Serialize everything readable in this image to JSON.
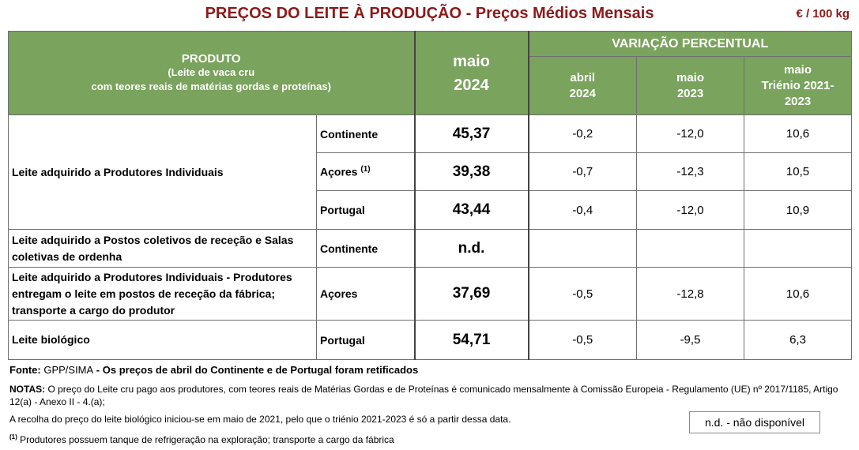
{
  "header": {
    "title": "PREÇOS DO LEITE À PRODUÇÃO - Preços Médios Mensais",
    "unit": "€ / 100 kg"
  },
  "table": {
    "col_produto_title": "PRODUTO",
    "col_produto_sub1": "(Leite de vaca cru",
    "col_produto_sub2": "com teores reais de matérias gordas e proteínas)",
    "col_price_l1": "maio",
    "col_price_l2": "2024",
    "col_var_title": "VARIAÇÃO PERCENTUAL",
    "col_var_abril_l1": "abril",
    "col_var_abril_l2": "2024",
    "col_var_maio_l1": "maio",
    "col_var_maio_l2": "2023",
    "col_var_trien_l1": "maio",
    "col_var_trien_l2": "Triénio 2021-",
    "col_var_trien_l3": "2023",
    "rows": [
      {
        "label": "Leite adquirido a Produtores Individuais",
        "region": "Continente",
        "price": "45,37",
        "abril": "-0,2",
        "maio": "-12,0",
        "trienio": "10,6"
      },
      {
        "region": "Açores",
        "region_sup": "(1)",
        "price": "39,38",
        "abril": "-0,7",
        "maio": "-12,3",
        "trienio": "10,5"
      },
      {
        "region": "Portugal",
        "price": "43,44",
        "abril": "-0,4",
        "maio": "-12,0",
        "trienio": "10,9"
      },
      {
        "label_l1": "Leite adquirido a Postos coletivos de receção e Salas",
        "label_l2": "coletivas de ordenha",
        "region": "Continente",
        "price": "n.d.",
        "abril": "",
        "maio": "",
        "trienio": ""
      },
      {
        "label_l1": "Leite adquirido a Produtores Individuais - Produtores",
        "label_l2": "entregam o leite em postos de receção da fábrica;",
        "label_l3": "transporte a cargo do produtor",
        "region": "Açores",
        "price": "37,69",
        "abril": "-0,5",
        "maio": "-12,8",
        "trienio": "10,6"
      },
      {
        "label": "Leite biológico",
        "region": "Portugal",
        "price": "54,71",
        "abril": "-0,5",
        "maio": "-9,5",
        "trienio": "6,3"
      }
    ]
  },
  "footer": {
    "fonte_label": "Fonte:",
    "fonte_src": " GPP/SIMA",
    "fonte_note": " - Os preços de abril do Continente e de Portugal foram retificados",
    "notas_label": "NOTAS:",
    "notas_text": " O preço do Leite cru pago aos produtores, com teores reais de Matérias Gordas e de Proteínas é comunicado mensalmente à Comissão Europeia - Regulamento (UE) nº 2017/1185, Artigo 12(a) - Anexo II - 4.(a);",
    "notas_text2": "A recolha do preço do leite biológico iniciou-se em maio de 2021, pelo que o triénio 2021-2023 é só a partir dessa data.",
    "nota1_sup": "(1)",
    "nota1_text": " Produtores possuem tanque de refrigeração na exploração; transporte a cargo da fábrica",
    "nd_legend": "n.d. - não disponível"
  },
  "colors": {
    "title": "#8b1a1a",
    "header_bg": "#7aa35d"
  }
}
